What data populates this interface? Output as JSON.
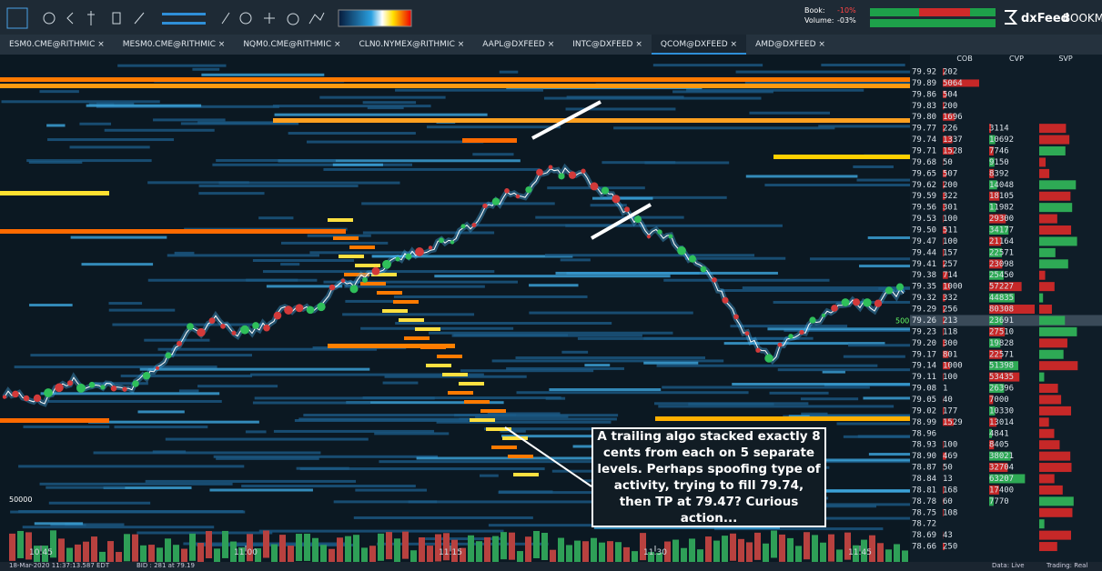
{
  "toolbar": {
    "book_label": "Book:",
    "book_value": "-10%",
    "volume_label": "Volume:",
    "volume_value": "-03%",
    "brand": "dxFeed",
    "product": "BOOKMAP"
  },
  "tabs": [
    "ESM0.CME@RITHMIC",
    "MESM0.CME@RITHMIC",
    "NQM0.CME@RITHMIC",
    "CLN0.NYMEX@RITHMIC",
    "AAPL@DXFEED",
    "INTC@DXFEED",
    "QCOM@DXFEED",
    "AMD@DXFEED"
  ],
  "active_tab": 6,
  "columns": [
    "COB",
    "CVP",
    "SVP"
  ],
  "ladder": {
    "prices": [
      "79.92",
      "79.89",
      "79.86",
      "79.83",
      "79.80",
      "79.77",
      "79.74",
      "79.71",
      "79.68",
      "79.65",
      "79.62",
      "79.59",
      "79.56",
      "79.53",
      "79.50",
      "79.47",
      "79.44",
      "79.41",
      "79.38",
      "79.35",
      "79.32",
      "79.29",
      "79.26",
      "79.23",
      "79.20",
      "79.17",
      "79.14",
      "79.11",
      "79.08",
      "79.05",
      "79.02",
      "78.99",
      "78.96",
      "78.93",
      "78.90",
      "78.87",
      "78.84",
      "78.81",
      "78.78",
      "78.75",
      "78.72",
      "78.69",
      "78.66"
    ],
    "cob": [
      202,
      5064,
      504,
      200,
      1696,
      226,
      1337,
      1528,
      50,
      507,
      200,
      322,
      301,
      100,
      511,
      100,
      157,
      257,
      714,
      1000,
      332,
      256,
      213,
      118,
      300,
      801,
      1000,
      100,
      1,
      40,
      177,
      1529,
      null,
      100,
      469,
      50,
      13,
      168,
      60,
      108,
      null,
      43,
      250
    ],
    "cvp": [
      null,
      null,
      null,
      null,
      null,
      3114,
      10692,
      7746,
      9150,
      8392,
      14048,
      18105,
      11982,
      29300,
      34177,
      21164,
      22571,
      23098,
      25450,
      57227,
      44835,
      80308,
      23691,
      27510,
      19828,
      22571,
      51398,
      53435,
      26396,
      7000,
      10330,
      13014,
      4841,
      8405,
      38021,
      32704,
      63207,
      17400,
      7770,
      null,
      null,
      null,
      null
    ],
    "last_price": "79.26"
  },
  "left_price_label": "500",
  "volume_scale_label": "50000",
  "times": [
    "10:45",
    "11:00",
    "11:15",
    "11:30",
    "11:45"
  ],
  "annotation": "A trailing algo stacked exactly 8 cents from each on 5 separate levels. Perhaps spoofing type of activity, trying to fill 79.74, then TP at 79.47? Curious action...",
  "status": {
    "time": "18-Mar-2020 11:37:13.587 EDT",
    "bid": "BID : 281 at 79.19",
    "data": "Data: Live",
    "trading": "Trading: Real"
  }
}
